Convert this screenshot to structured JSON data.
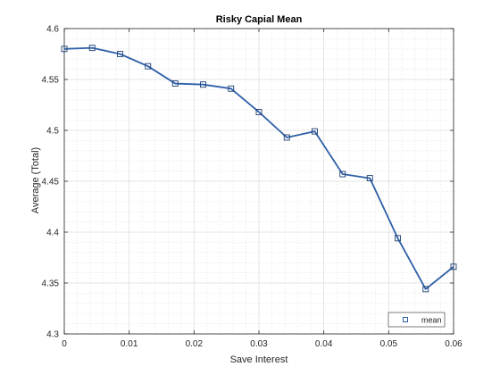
{
  "chart_data": {
    "type": "line",
    "title": "Risky Capial Mean",
    "xlabel": "Save Interest",
    "ylabel": "Average (Total)",
    "xlim": [
      0,
      0.06
    ],
    "ylim": [
      4.3,
      4.6
    ],
    "xticks": [
      0,
      0.01,
      0.02,
      0.03,
      0.04,
      0.05,
      0.06
    ],
    "xtick_labels": [
      "0",
      "0.01",
      "0.02",
      "0.03",
      "0.04",
      "0.05",
      "0.06"
    ],
    "yticks": [
      4.3,
      4.35,
      4.4,
      4.45,
      4.5,
      4.55,
      4.6
    ],
    "ytick_labels": [
      "4.3",
      "4.35",
      "4.4",
      "4.45",
      "4.5",
      "4.55",
      "4.6"
    ],
    "grid": true,
    "minor_grid": true,
    "legend_position": "bottom-right",
    "series": [
      {
        "name": "mean",
        "color": "#2e5fa8",
        "marker": "square",
        "x": [
          0,
          0.0043,
          0.0086,
          0.0129,
          0.0171,
          0.0214,
          0.0257,
          0.03,
          0.0343,
          0.0386,
          0.0429,
          0.0471,
          0.0514,
          0.0557,
          0.06
        ],
        "y": [
          4.58,
          4.581,
          4.575,
          4.563,
          4.546,
          4.545,
          4.541,
          4.518,
          4.493,
          4.499,
          4.457,
          4.453,
          4.394,
          4.344,
          4.366
        ]
      }
    ]
  }
}
